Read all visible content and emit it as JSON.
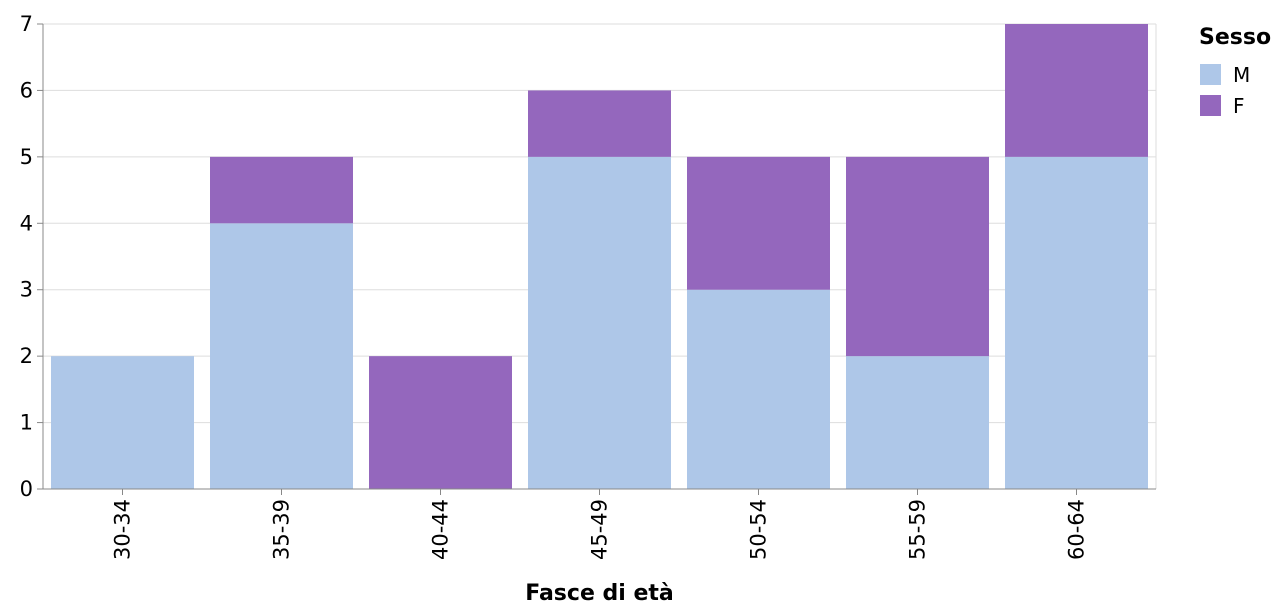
{
  "chart_data": {
    "type": "bar",
    "stacked": true,
    "categories": [
      "30-34",
      "35-39",
      "40-44",
      "45-49",
      "50-54",
      "55-59",
      "60-64"
    ],
    "series": [
      {
        "name": "M",
        "values": [
          2,
          4,
          0,
          5,
          3,
          2,
          5
        ],
        "color": "#aec7e8"
      },
      {
        "name": "F",
        "values": [
          0,
          1,
          2,
          1,
          2,
          3,
          2
        ],
        "color": "#9467bd"
      }
    ],
    "xlabel": "Fasce di età",
    "ylabel": "",
    "ylim": [
      0,
      7
    ],
    "yticks": [
      0,
      1,
      2,
      3,
      4,
      5,
      6,
      7
    ],
    "grid": true,
    "legend": {
      "title": "Sesso",
      "placement": "right"
    }
  }
}
